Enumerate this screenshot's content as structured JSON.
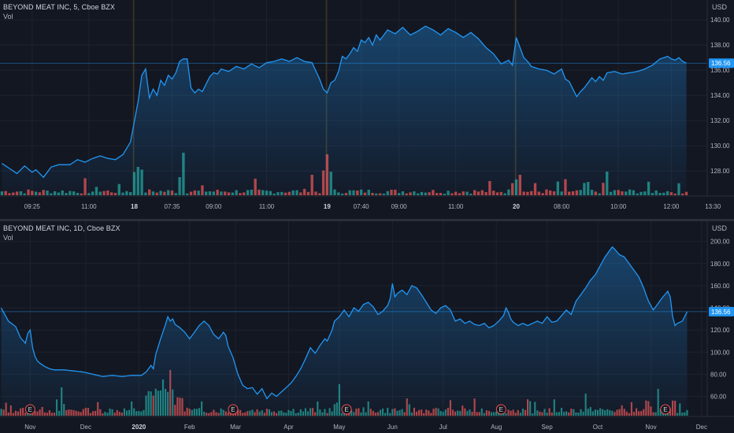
{
  "colors": {
    "background": "#131722",
    "line": "#2196f3",
    "up": "#26a69a",
    "down": "#ef5350",
    "grid": "#1e222d",
    "text": "#b2b5be",
    "price_tag": "#2196f3"
  },
  "chart_data": [
    {
      "type": "line",
      "legend": "BEYOND MEAT INC, 5, Cboe BZX",
      "volume_label": "Vol",
      "currency": "USD",
      "last_price_label": "136.56",
      "ylim": [
        126.2,
        141.2
      ],
      "y_ticks": [
        "128.00",
        "130.00",
        "132.00",
        "134.00",
        "136.00",
        "138.00",
        "140.00"
      ],
      "y_tick_values": [
        128,
        130,
        132,
        134,
        136,
        138,
        140
      ],
      "x_tick_labels": [
        {
          "label": "09:25",
          "i": 8
        },
        {
          "label": "11:00",
          "i": 23
        },
        {
          "label": "18",
          "i": 35,
          "bold": true
        },
        {
          "label": "07:35",
          "i": 45
        },
        {
          "label": "09:00",
          "i": 56
        },
        {
          "label": "11:00",
          "i": 70
        },
        {
          "label": "19",
          "i": 86,
          "bold": true
        },
        {
          "label": "07:40",
          "i": 95
        },
        {
          "label": "09:00",
          "i": 105
        },
        {
          "label": "11:00",
          "i": 120
        },
        {
          "label": "20",
          "i": 136,
          "bold": true
        },
        {
          "label": "08:00",
          "i": 148
        },
        {
          "label": "10:00",
          "i": 163
        },
        {
          "label": "12:00",
          "i": 177
        },
        {
          "label": "13:30",
          "i": 188
        }
      ],
      "session_breaks": [
        35,
        86,
        136
      ],
      "n_points": 182,
      "anchors": [
        [
          0,
          128.6
        ],
        [
          2,
          128.2
        ],
        [
          4,
          127.8
        ],
        [
          6,
          128.4
        ],
        [
          8,
          127.9
        ],
        [
          9,
          128.1
        ],
        [
          11,
          127.5
        ],
        [
          13,
          128.3
        ],
        [
          15,
          128.5
        ],
        [
          18,
          128.5
        ],
        [
          20,
          128.9
        ],
        [
          22,
          128.7
        ],
        [
          24,
          129.0
        ],
        [
          26,
          129.2
        ],
        [
          28,
          129.0
        ],
        [
          30,
          128.9
        ],
        [
          32,
          129.3
        ],
        [
          34,
          130.3
        ],
        [
          36,
          133.5
        ],
        [
          37,
          135.6
        ],
        [
          38,
          136.1
        ],
        [
          39,
          133.8
        ],
        [
          40,
          134.5
        ],
        [
          41,
          134.0
        ],
        [
          42,
          135.2
        ],
        [
          43,
          134.8
        ],
        [
          44,
          135.6
        ],
        [
          45,
          135.3
        ],
        [
          46,
          135.8
        ],
        [
          47,
          136.7
        ],
        [
          48,
          136.9
        ],
        [
          49,
          136.9
        ],
        [
          50,
          134.6
        ],
        [
          51,
          134.2
        ],
        [
          52,
          134.5
        ],
        [
          53,
          134.3
        ],
        [
          54,
          134.9
        ],
        [
          55,
          135.5
        ],
        [
          56,
          135.8
        ],
        [
          57,
          135.7
        ],
        [
          58,
          136.1
        ],
        [
          60,
          135.9
        ],
        [
          62,
          136.3
        ],
        [
          64,
          136.1
        ],
        [
          66,
          136.5
        ],
        [
          68,
          136.2
        ],
        [
          70,
          136.6
        ],
        [
          72,
          136.7
        ],
        [
          74,
          136.9
        ],
        [
          76,
          136.7
        ],
        [
          78,
          137.0
        ],
        [
          80,
          136.7
        ],
        [
          82,
          136.6
        ],
        [
          84,
          135.3
        ],
        [
          85,
          134.5
        ],
        [
          86,
          134.2
        ],
        [
          87,
          135.0
        ],
        [
          88,
          135.2
        ],
        [
          89,
          135.9
        ],
        [
          90,
          137.1
        ],
        [
          91,
          136.9
        ],
        [
          92,
          137.3
        ],
        [
          93,
          137.8
        ],
        [
          94,
          137.5
        ],
        [
          95,
          138.4
        ],
        [
          96,
          138.2
        ],
        [
          97,
          138.6
        ],
        [
          98,
          138.0
        ],
        [
          99,
          138.8
        ],
        [
          100,
          138.4
        ],
        [
          102,
          139.2
        ],
        [
          104,
          138.9
        ],
        [
          106,
          139.4
        ],
        [
          108,
          138.8
        ],
        [
          110,
          139.1
        ],
        [
          112,
          139.5
        ],
        [
          114,
          139.2
        ],
        [
          116,
          138.8
        ],
        [
          118,
          139.3
        ],
        [
          120,
          139.0
        ],
        [
          122,
          138.6
        ],
        [
          124,
          139.0
        ],
        [
          126,
          138.5
        ],
        [
          128,
          137.8
        ],
        [
          130,
          137.3
        ],
        [
          132,
          136.5
        ],
        [
          134,
          136.8
        ],
        [
          135,
          136.4
        ],
        [
          136,
          138.6
        ],
        [
          137,
          137.8
        ],
        [
          138,
          137.0
        ],
        [
          139,
          136.7
        ],
        [
          140,
          136.3
        ],
        [
          142,
          136.1
        ],
        [
          144,
          136.0
        ],
        [
          146,
          135.7
        ],
        [
          148,
          136.1
        ],
        [
          149,
          135.3
        ],
        [
          150,
          135.1
        ],
        [
          151,
          134.5
        ],
        [
          152,
          133.9
        ],
        [
          153,
          134.3
        ],
        [
          154,
          134.6
        ],
        [
          156,
          135.4
        ],
        [
          157,
          135.1
        ],
        [
          158,
          135.5
        ],
        [
          159,
          135.2
        ],
        [
          160,
          135.8
        ],
        [
          162,
          135.9
        ],
        [
          164,
          135.7
        ],
        [
          166,
          135.8
        ],
        [
          168,
          135.9
        ],
        [
          170,
          136.1
        ],
        [
          172,
          136.4
        ],
        [
          174,
          136.9
        ],
        [
          176,
          137.1
        ],
        [
          177,
          136.9
        ],
        [
          178,
          136.8
        ],
        [
          179,
          137.0
        ],
        [
          180,
          136.7
        ],
        [
          181,
          136.56
        ]
      ]
    },
    {
      "type": "line",
      "legend": "BEYOND MEAT INC, 1D, Cboe BZX",
      "volume_label": "Vol",
      "currency": "USD",
      "last_price_label": "136.56",
      "ylim": [
        44,
        214
      ],
      "y_ticks": [
        "60.00",
        "80.00",
        "100.00",
        "120.00",
        "140.00",
        "160.00",
        "180.00",
        "200.00"
      ],
      "y_tick_values": [
        60,
        80,
        100,
        120,
        140,
        160,
        180,
        200
      ],
      "x_tick_labels": [
        {
          "label": "Nov",
          "i": 12
        },
        {
          "label": "Dec",
          "i": 35
        },
        {
          "label": "2020",
          "i": 57,
          "bold": true
        },
        {
          "label": "Feb",
          "i": 78
        },
        {
          "label": "Mar",
          "i": 97
        },
        {
          "label": "Apr",
          "i": 119
        },
        {
          "label": "May",
          "i": 140
        },
        {
          "label": "Jun",
          "i": 162
        },
        {
          "label": "Jul",
          "i": 183
        },
        {
          "label": "Aug",
          "i": 205
        },
        {
          "label": "Sep",
          "i": 226
        },
        {
          "label": "Oct",
          "i": 247
        },
        {
          "label": "Nov",
          "i": 269
        },
        {
          "label": "Dec",
          "i": 290
        }
      ],
      "earnings_markers": [
        12,
        96,
        143,
        207,
        275
      ],
      "earnings_label": "E",
      "n_points": 285,
      "anchors": [
        [
          0,
          140
        ],
        [
          3,
          128
        ],
        [
          6,
          123
        ],
        [
          8,
          113
        ],
        [
          10,
          108
        ],
        [
          11,
          117
        ],
        [
          12,
          120
        ],
        [
          13,
          104
        ],
        [
          14,
          96
        ],
        [
          15,
          92
        ],
        [
          16,
          90
        ],
        [
          18,
          87
        ],
        [
          20,
          85
        ],
        [
          22,
          84
        ],
        [
          26,
          84
        ],
        [
          30,
          83
        ],
        [
          34,
          82
        ],
        [
          38,
          80
        ],
        [
          42,
          78
        ],
        [
          46,
          79
        ],
        [
          50,
          78
        ],
        [
          54,
          79
        ],
        [
          58,
          79
        ],
        [
          60,
          82
        ],
        [
          62,
          88
        ],
        [
          63,
          85
        ],
        [
          64,
          98
        ],
        [
          66,
          112
        ],
        [
          68,
          125
        ],
        [
          69,
          132
        ],
        [
          70,
          128
        ],
        [
          71,
          130
        ],
        [
          72,
          125
        ],
        [
          74,
          122
        ],
        [
          76,
          118
        ],
        [
          78,
          112
        ],
        [
          80,
          118
        ],
        [
          82,
          124
        ],
        [
          84,
          128
        ],
        [
          86,
          124
        ],
        [
          88,
          116
        ],
        [
          90,
          112
        ],
        [
          92,
          118
        ],
        [
          93,
          115
        ],
        [
          94,
          105
        ],
        [
          96,
          95
        ],
        [
          98,
          80
        ],
        [
          100,
          70
        ],
        [
          102,
          67
        ],
        [
          104,
          68
        ],
        [
          106,
          62
        ],
        [
          108,
          67
        ],
        [
          110,
          58
        ],
        [
          112,
          63
        ],
        [
          114,
          60
        ],
        [
          116,
          64
        ],
        [
          118,
          68
        ],
        [
          120,
          72
        ],
        [
          122,
          78
        ],
        [
          124,
          85
        ],
        [
          126,
          94
        ],
        [
          128,
          104
        ],
        [
          130,
          99
        ],
        [
          132,
          106
        ],
        [
          134,
          112
        ],
        [
          135,
          110
        ],
        [
          137,
          120
        ],
        [
          138,
          128
        ],
        [
          140,
          132
        ],
        [
          142,
          138
        ],
        [
          144,
          132
        ],
        [
          146,
          140
        ],
        [
          148,
          137
        ],
        [
          150,
          143
        ],
        [
          152,
          145
        ],
        [
          154,
          141
        ],
        [
          156,
          134
        ],
        [
          158,
          137
        ],
        [
          160,
          142
        ],
        [
          161,
          148
        ],
        [
          162,
          162
        ],
        [
          163,
          150
        ],
        [
          164,
          153
        ],
        [
          166,
          156
        ],
        [
          168,
          152
        ],
        [
          170,
          160
        ],
        [
          172,
          158
        ],
        [
          174,
          152
        ],
        [
          176,
          145
        ],
        [
          178,
          138
        ],
        [
          180,
          135
        ],
        [
          182,
          140
        ],
        [
          184,
          142
        ],
        [
          186,
          138
        ],
        [
          188,
          128
        ],
        [
          190,
          130
        ],
        [
          192,
          126
        ],
        [
          194,
          128
        ],
        [
          196,
          125
        ],
        [
          198,
          124
        ],
        [
          200,
          126
        ],
        [
          202,
          122
        ],
        [
          204,
          124
        ],
        [
          206,
          128
        ],
        [
          208,
          133
        ],
        [
          209,
          140
        ],
        [
          210,
          136
        ],
        [
          211,
          130
        ],
        [
          212,
          127
        ],
        [
          214,
          124
        ],
        [
          216,
          126
        ],
        [
          218,
          124
        ],
        [
          220,
          126
        ],
        [
          222,
          128
        ],
        [
          224,
          126
        ],
        [
          226,
          132
        ],
        [
          228,
          127
        ],
        [
          230,
          128
        ],
        [
          232,
          133
        ],
        [
          234,
          138
        ],
        [
          236,
          134
        ],
        [
          238,
          146
        ],
        [
          240,
          152
        ],
        [
          242,
          158
        ],
        [
          244,
          165
        ],
        [
          246,
          170
        ],
        [
          248,
          178
        ],
        [
          250,
          186
        ],
        [
          252,
          192
        ],
        [
          253,
          195
        ],
        [
          254,
          193
        ],
        [
          256,
          188
        ],
        [
          258,
          186
        ],
        [
          260,
          180
        ],
        [
          262,
          174
        ],
        [
          264,
          168
        ],
        [
          266,
          158
        ],
        [
          268,
          146
        ],
        [
          270,
          138
        ],
        [
          272,
          144
        ],
        [
          274,
          150
        ],
        [
          276,
          155
        ],
        [
          277,
          150
        ],
        [
          278,
          132
        ],
        [
          279,
          124
        ],
        [
          280,
          126
        ],
        [
          282,
          128
        ],
        [
          284,
          136.56
        ]
      ]
    }
  ]
}
